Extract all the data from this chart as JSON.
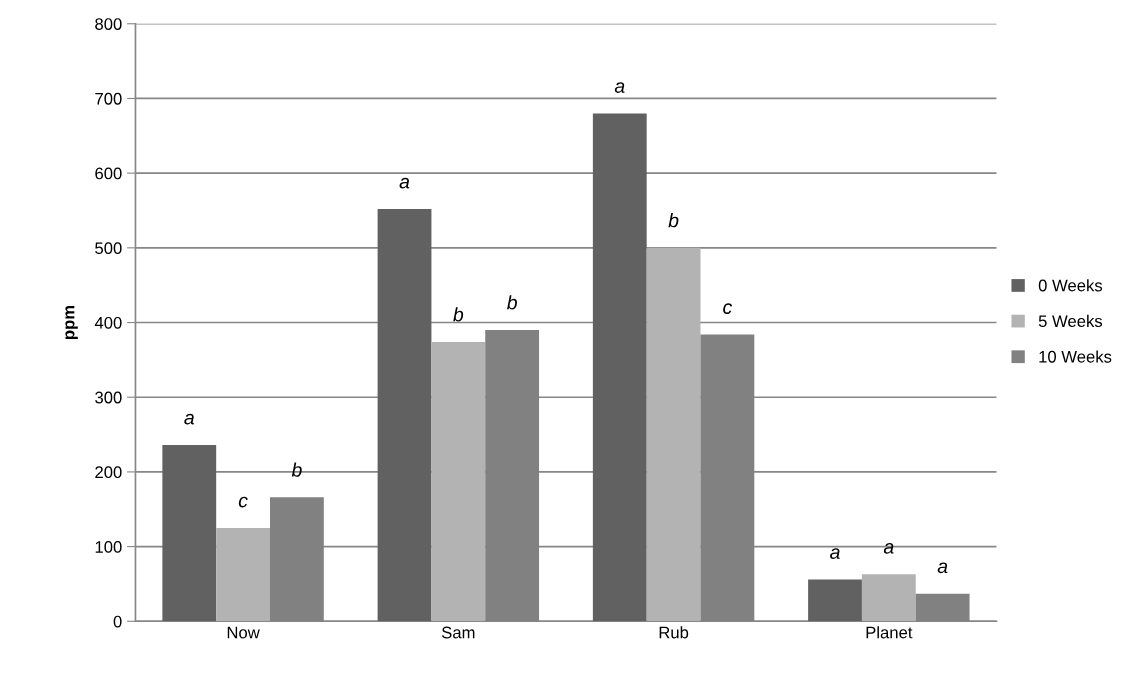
{
  "chart_data": {
    "type": "bar",
    "ylabel": "ppm",
    "categories": [
      "Now",
      "Sam",
      "Rub",
      "Planet"
    ],
    "series": [
      {
        "name": "0 Weeks",
        "color": "#616161",
        "values": [
          236,
          552,
          680,
          56
        ],
        "value_labels": [
          "a",
          "a",
          "a",
          "a"
        ]
      },
      {
        "name": "5 Weeks",
        "color": "#b3b3b3",
        "values": [
          125,
          374,
          500,
          63
        ],
        "value_labels": [
          "c",
          "b",
          "b",
          "a"
        ]
      },
      {
        "name": "10 Weeks",
        "color": "#818181",
        "values": [
          166,
          390,
          384,
          37
        ],
        "value_labels": [
          "b",
          "b",
          "c",
          "a"
        ]
      }
    ],
    "ylim": [
      0,
      800
    ],
    "yticks": [
      0,
      100,
      200,
      300,
      400,
      500,
      600,
      700,
      800
    ],
    "grid": "y",
    "legend": "right"
  }
}
